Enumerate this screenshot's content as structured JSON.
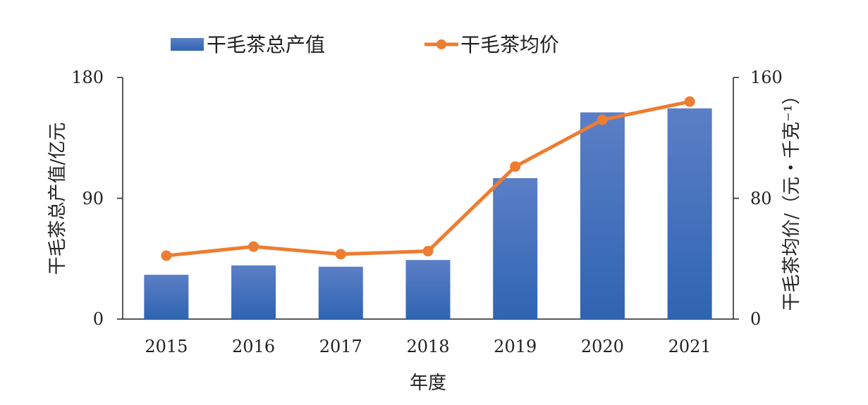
{
  "chart_data": {
    "type": "bar",
    "title": "",
    "xlabel": "年度",
    "ylabel_left": "干毛茶总产值/亿元",
    "ylabel_right": "干毛茶均价/（元・千克⁻¹）",
    "categories": [
      "2015",
      "2016",
      "2017",
      "2018",
      "2019",
      "2020",
      "2021"
    ],
    "ylim_left": [
      0,
      180
    ],
    "yticks_left": [
      "0",
      "90",
      "180"
    ],
    "ylim_right": [
      0,
      160
    ],
    "yticks_right": [
      "0",
      "80",
      "160"
    ],
    "grid": false,
    "legend_position": "top",
    "series": [
      {
        "name": "干毛茶总产值",
        "type": "bar",
        "axis": "left",
        "color": "#4472C4",
        "values": [
          33,
          40,
          39,
          44,
          105,
          154,
          157
        ]
      },
      {
        "name": "干毛茶均价",
        "type": "line",
        "axis": "right",
        "color": "#ED7D31",
        "values": [
          42,
          48,
          43,
          45,
          101,
          132,
          144
        ]
      }
    ]
  }
}
